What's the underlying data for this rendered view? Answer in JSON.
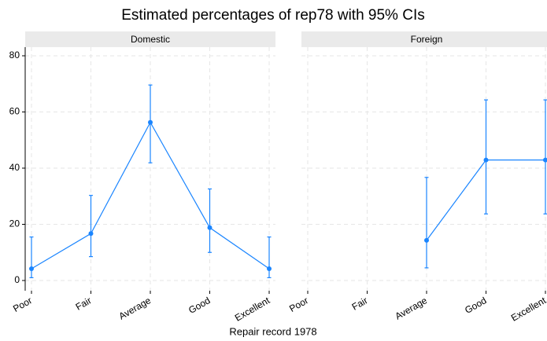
{
  "chart_data": {
    "type": "line",
    "title": "Estimated percentages of rep78 with 95% CIs",
    "xlabel": "Repair record 1978",
    "ylim": [
      0,
      80
    ],
    "yticks": [
      0,
      20,
      40,
      60,
      80
    ],
    "grid": true,
    "color": "#1a85ff",
    "categories": [
      "Poor",
      "Fair",
      "Average",
      "Good",
      "Excellent"
    ],
    "panels": [
      {
        "name": "Domestic",
        "values": [
          4.2,
          16.7,
          56.3,
          18.8,
          4.2
        ],
        "lower": [
          1.0,
          8.5,
          41.9,
          10.0,
          1.0
        ],
        "upper": [
          15.5,
          30.3,
          69.6,
          32.6,
          15.5
        ]
      },
      {
        "name": "Foreign",
        "values": [
          null,
          null,
          14.3,
          42.9,
          42.9
        ],
        "lower": [
          null,
          null,
          4.5,
          23.7,
          23.7
        ],
        "upper": [
          null,
          null,
          36.7,
          64.3,
          64.3
        ]
      }
    ]
  }
}
